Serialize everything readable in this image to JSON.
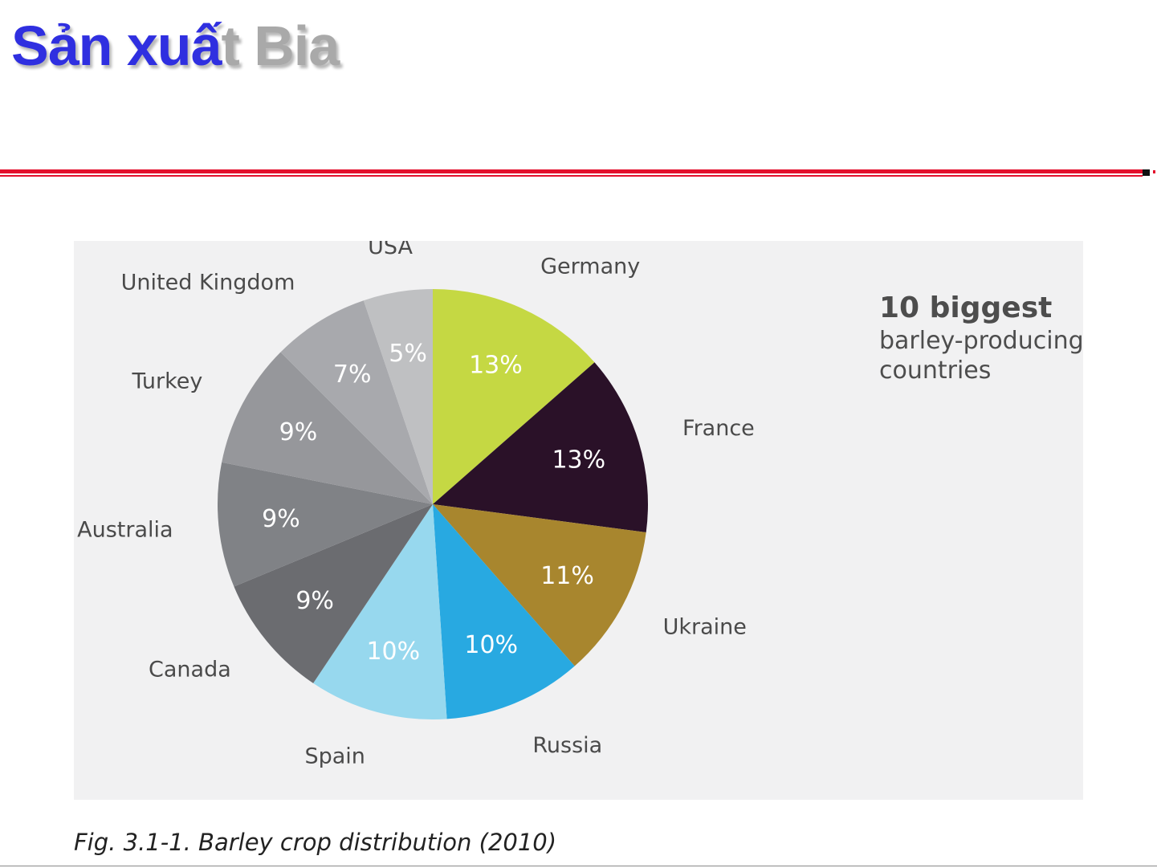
{
  "slide": {
    "title_part1": "Sản xuấ",
    "title_part2": "t Bia",
    "title_colors": {
      "primary": "#2f2fe0",
      "faded": "#a9a9a9"
    },
    "divider_color": "#e3102c"
  },
  "figure": {
    "heading_bold": "10 biggest",
    "heading_line2": "barley-producing",
    "heading_line3": "countries",
    "caption": "Fig. 3.1-1. Barley crop distribution (2010)",
    "panel_color": "#f1f1f2"
  },
  "chart_data": {
    "type": "pie",
    "title": "10 biggest barley-producing countries",
    "categories": [
      "Germany",
      "France",
      "Ukraine",
      "Russia",
      "Spain",
      "Canada",
      "Australia",
      "Turkey",
      "United Kingdom",
      "USA"
    ],
    "values": [
      13,
      13,
      11,
      10,
      10,
      9,
      9,
      9,
      7,
      5
    ],
    "value_labels": [
      "13%",
      "13%",
      "11%",
      "10%",
      "10%",
      "9%",
      "9%",
      "9%",
      "7%",
      "5%"
    ],
    "colors": [
      "#c5d843",
      "#2a1128",
      "#a8862e",
      "#28a9e1",
      "#97d8ee",
      "#6b6c70",
      "#808286",
      "#96979b",
      "#a8a9ad",
      "#bfc0c2"
    ],
    "start_angle": "12 o'clock",
    "direction": "clockwise"
  }
}
